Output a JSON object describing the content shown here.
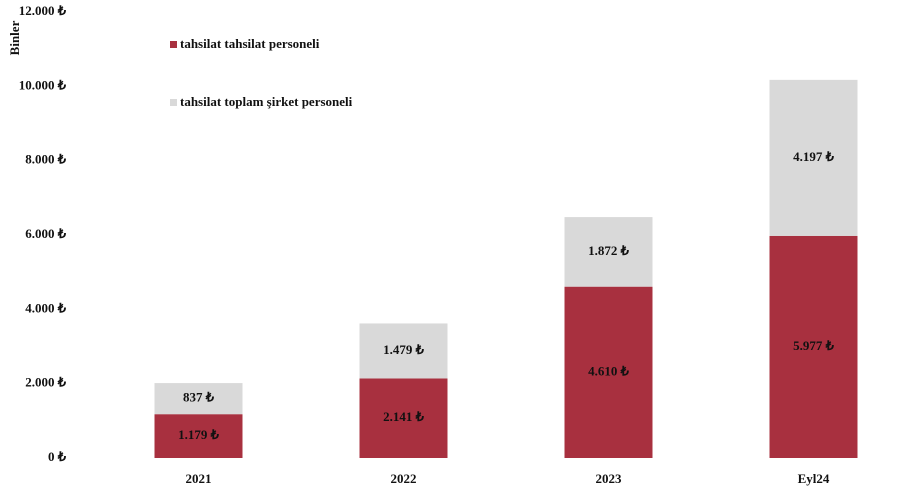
{
  "chart_data": {
    "type": "stacked_bar",
    "y_label": "Binler",
    "categories": [
      "2021",
      "2022",
      "2023",
      "Eyl24"
    ],
    "series": [
      {
        "name": "tahsilat tahsilat personeli",
        "color": "#a8303f",
        "values": [
          1179,
          2141,
          4610,
          5977
        ],
        "value_labels": [
          "1.179 ₺",
          "2.141 ₺",
          "4.610 ₺",
          "5.977 ₺"
        ]
      },
      {
        "name": "tahsilat toplam şirket personeli",
        "color": "#d9d9d9",
        "values": [
          837,
          1479,
          1872,
          4197
        ],
        "value_labels": [
          "837 ₺",
          "1.479 ₺",
          "1.872 ₺",
          "4.197 ₺"
        ]
      }
    ],
    "ylim": [
      0,
      12000
    ],
    "yticks": [
      {
        "value": 0,
        "label": "0 ₺"
      },
      {
        "value": 2000,
        "label": "2.000 ₺"
      },
      {
        "value": 4000,
        "label": "4.000 ₺"
      },
      {
        "value": 6000,
        "label": "6.000 ₺"
      },
      {
        "value": 8000,
        "label": "8.000 ₺"
      },
      {
        "value": 10000,
        "label": "10.000 ₺"
      },
      {
        "value": 12000,
        "label": "12.000 ₺"
      }
    ],
    "grid": false,
    "legend": "top-left"
  }
}
